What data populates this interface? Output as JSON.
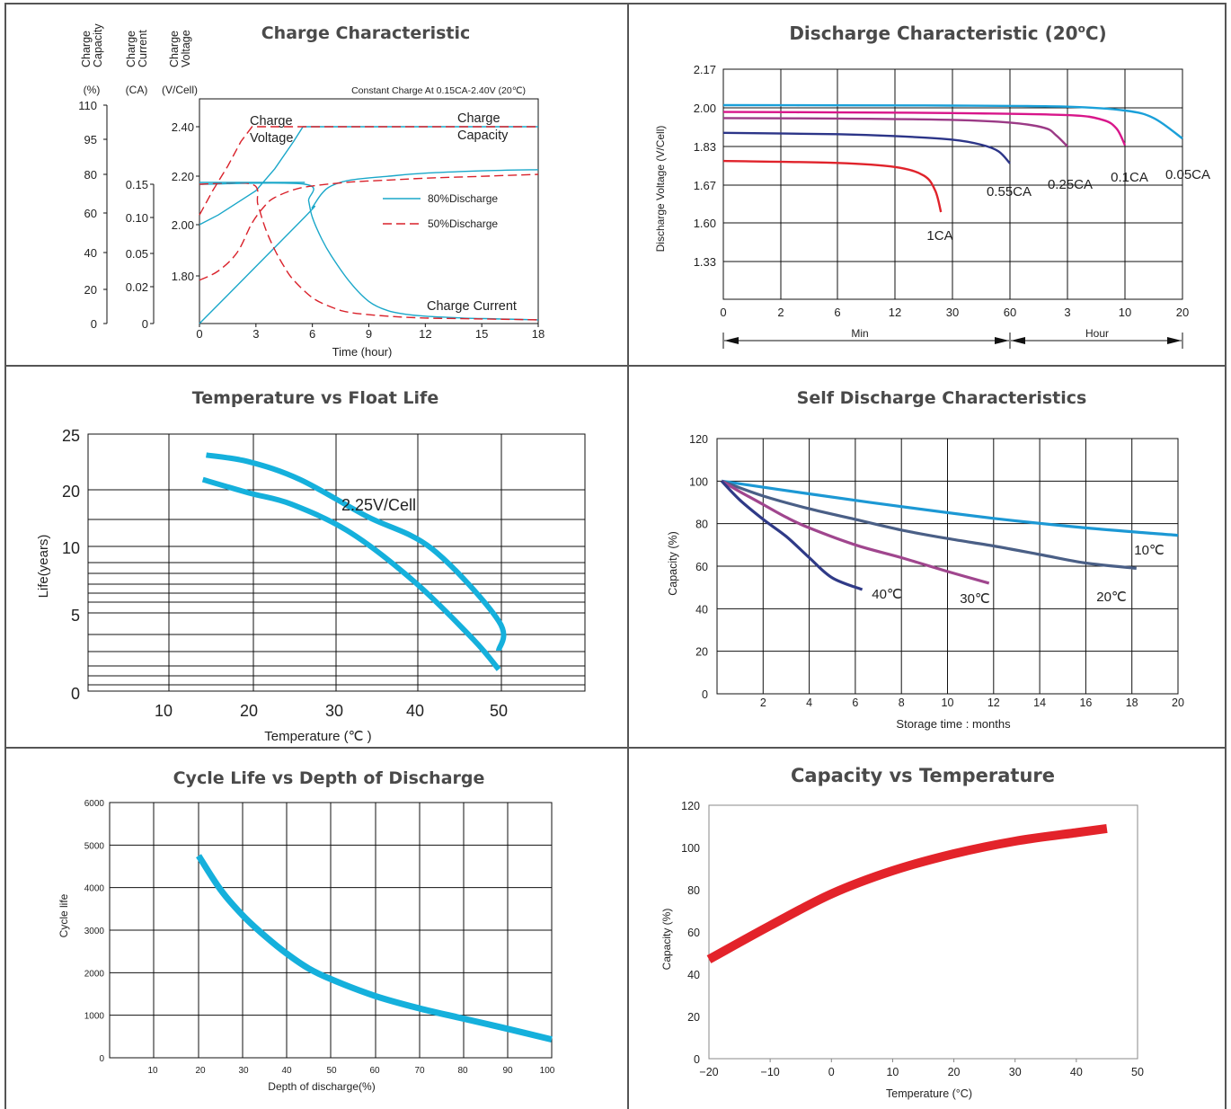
{
  "chart_data": [
    {
      "id": "charge",
      "type": "line",
      "title": "Charge Characteristic",
      "xlabel": "Time (hour)",
      "x_ticks": [
        "0",
        "3",
        "6",
        "9",
        "12",
        "15",
        "18"
      ],
      "xlim": [
        0,
        18
      ],
      "axes": [
        {
          "name": "Charge Capacity",
          "unit": "(%)",
          "ticks": [
            "110",
            "95",
            "80",
            "60",
            "40",
            "20",
            "0"
          ]
        },
        {
          "name": "Charge Current",
          "unit": "(CA)",
          "ticks": [
            "0.15",
            "0.10",
            "0.05",
            "0.02",
            "0"
          ]
        },
        {
          "name": "Charge Voltage",
          "unit": "(V/Cell)",
          "ticks": [
            "2.40",
            "2.20",
            "2.00",
            "1.80"
          ]
        }
      ],
      "note": "Constant Charge At 0.15CA-2.40V  (20℃)",
      "annotations": [
        "Charge Voltage",
        "Charge Capacity",
        "Charge Current"
      ],
      "legend": [
        {
          "name": "80%Discharge",
          "color": "#1aa7c9",
          "style": "solid"
        },
        {
          "name": "50%Discharge",
          "color": "#d9212a",
          "style": "dashed"
        }
      ],
      "legend_position": "middle-right",
      "grid": false,
      "series": [
        {
          "name": "80%Discharge",
          "kind": "voltage",
          "axis": "voltage",
          "x": [
            0,
            1,
            2,
            3,
            4,
            5,
            5.5,
            18
          ],
          "y": [
            2.0,
            2.04,
            2.09,
            2.14,
            2.23,
            2.34,
            2.4,
            2.4
          ]
        },
        {
          "name": "80%Discharge",
          "kind": "current",
          "axis": "current",
          "x": [
            0,
            5.6,
            5.8,
            6,
            6.5,
            7,
            8,
            9,
            10,
            11,
            12,
            14,
            16,
            18
          ],
          "y": [
            0.15,
            0.15,
            0.125,
            0.1,
            0.07,
            0.048,
            0.024,
            0.012,
            0.007,
            0.005,
            0.004,
            0.003,
            0.0025,
            0.002
          ]
        },
        {
          "name": "80%Discharge",
          "kind": "capacity",
          "axis": "capacity",
          "x": [
            0,
            5.6,
            6,
            6.5,
            7,
            8,
            10,
            12,
            15,
            18
          ],
          "y": [
            0,
            58,
            63,
            70,
            74,
            77,
            79,
            80.5,
            81.5,
            82
          ]
        },
        {
          "name": "50%Discharge",
          "kind": "voltage",
          "axis": "voltage",
          "x": [
            0,
            0.7,
            1.5,
            2.2,
            2.8,
            18
          ],
          "y": [
            2.04,
            2.14,
            2.24,
            2.34,
            2.4,
            2.4
          ]
        },
        {
          "name": "50%Discharge",
          "kind": "current",
          "axis": "current",
          "x": [
            0,
            2.8,
            3.1,
            3.5,
            4,
            4.5,
            5,
            6,
            7,
            8,
            10,
            12,
            15,
            18
          ],
          "y": [
            0.15,
            0.15,
            0.12,
            0.085,
            0.055,
            0.038,
            0.026,
            0.014,
            0.009,
            0.006,
            0.004,
            0.003,
            0.0025,
            0.002
          ]
        },
        {
          "name": "50%Discharge",
          "kind": "capacity",
          "axis": "capacity",
          "x": [
            0,
            1,
            2,
            2.8,
            3.5,
            4,
            5,
            6,
            8,
            10,
            12,
            15,
            18
          ],
          "y": [
            25,
            30,
            40,
            55,
            64,
            68,
            72,
            74,
            76,
            77,
            78,
            79,
            80
          ]
        }
      ]
    },
    {
      "id": "discharge",
      "type": "line",
      "title": "Discharge Characteristic (20°C)",
      "title_main": "Discharge Characteristic (20",
      "title_degree": "o",
      "title_end": "C)",
      "ylabel": "Discharge Voltage (V/Cell)",
      "y_ticks": [
        "2.17",
        "2.00",
        "1.83",
        "1.67",
        "1.60",
        "1.33"
      ],
      "x_ticks": [
        "0",
        "2",
        "6",
        "12",
        "30",
        "60",
        "3",
        "10",
        "20"
      ],
      "x_groups": [
        "Min",
        "Hour"
      ],
      "grid": true,
      "series": [
        {
          "name": "1CA",
          "color": "#e0232b",
          "x": [
            0,
            2,
            3,
            3.5,
            3.7,
            3.8
          ],
          "y": [
            1.77,
            1.762,
            1.745,
            1.71,
            1.66,
            1.62
          ]
        },
        {
          "name": "0.55CA",
          "color": "#2c3588",
          "x": [
            0,
            2,
            3,
            4,
            4.5,
            4.8,
            5
          ],
          "y": [
            1.89,
            1.884,
            1.876,
            1.86,
            1.838,
            1.81,
            1.76
          ]
        },
        {
          "name": "0.25CA",
          "color": "#9b3a86",
          "x": [
            0,
            2,
            4,
            5,
            5.6,
            5.8,
            6
          ],
          "y": [
            1.955,
            1.953,
            1.947,
            1.935,
            1.912,
            1.88,
            1.83
          ]
        },
        {
          "name": "0.1CA",
          "color": "#d8168a",
          "x": [
            0,
            2,
            4,
            6,
            6.6,
            6.85,
            7
          ],
          "y": [
            1.982,
            1.98,
            1.977,
            1.968,
            1.948,
            1.91,
            1.835
          ]
        },
        {
          "name": "0.05CA",
          "color": "#1aa0d9",
          "x": [
            0,
            2,
            4,
            6,
            7,
            7.5,
            8
          ],
          "y": [
            2.012,
            2.011,
            2.01,
            2.005,
            1.988,
            1.955,
            1.865
          ]
        }
      ]
    },
    {
      "id": "float",
      "type": "line",
      "title": "Temperature vs Float Life",
      "xlabel": "Temperature (℃ )",
      "ylabel": "Life(years)",
      "x_ticks": [
        "10",
        "20",
        "30",
        "40",
        "50"
      ],
      "y_ticks": [
        "25",
        "20",
        "10",
        "5",
        "0"
      ],
      "annotation": "2.25V/Cell",
      "grid": true,
      "series": [
        {
          "name": "upper",
          "color": "#15b0dc",
          "x": [
            15,
            20,
            26,
            34,
            42,
            50,
            53.5
          ],
          "y": [
            23.2,
            22.6,
            21.0,
            15.5,
            9.9,
            4.6,
            2.7
          ]
        },
        {
          "name": "lower",
          "color": "#15b0dc",
          "x": [
            14.6,
            20,
            25,
            32,
            40,
            47,
            51
          ],
          "y": [
            21.0,
            19.6,
            17.6,
            12.6,
            7.4,
            3.4,
            1.5
          ]
        }
      ]
    },
    {
      "id": "self",
      "type": "line",
      "title": "Self Discharge Characteristics",
      "xlabel": "Storage time : months",
      "ylabel": "Capacity (%)",
      "x_ticks": [
        "2",
        "4",
        "6",
        "8",
        "10",
        "12",
        "14",
        "16",
        "18",
        "20"
      ],
      "y_ticks": [
        "120",
        "100",
        "80",
        "60",
        "40",
        "20",
        "0"
      ],
      "xlim": [
        0,
        20
      ],
      "ylim": [
        0,
        120
      ],
      "grid": true,
      "series": [
        {
          "name": "10℃",
          "color": "#1c98d4",
          "x": [
            0.2,
            4,
            8,
            12,
            16,
            20
          ],
          "y": [
            100,
            94,
            88,
            82.5,
            78,
            74.5
          ]
        },
        {
          "name": "20℃",
          "color": "#4a5f86",
          "x": [
            0.2,
            2,
            4,
            6,
            8,
            10,
            12,
            14,
            16,
            18.2
          ],
          "y": [
            100,
            93,
            87,
            82,
            77,
            73,
            69.5,
            65.5,
            61.5,
            59
          ]
        },
        {
          "name": "30℃",
          "color": "#a0468e",
          "x": [
            0.2,
            1,
            2,
            3,
            4,
            6,
            8,
            10,
            11.8
          ],
          "y": [
            100,
            95,
            89,
            83,
            78,
            70,
            64,
            57.5,
            52
          ]
        },
        {
          "name": "40℃",
          "color": "#2f3a87",
          "x": [
            0.2,
            1,
            2,
            3,
            4,
            5,
            6.3
          ],
          "y": [
            100,
            91,
            82,
            74,
            64,
            54.5,
            49
          ]
        }
      ]
    },
    {
      "id": "cycle",
      "type": "line",
      "title": "Cycle Life vs Depth of Discharge",
      "xlabel": "Depth of discharge(%)",
      "ylabel": "Cycle life",
      "x_ticks": [
        "10",
        "20",
        "30",
        "40",
        "50",
        "60",
        "70",
        "80",
        "90",
        "100"
      ],
      "y_ticks": [
        "6000",
        "5000",
        "4000",
        "3000",
        "2000",
        "1000",
        "0"
      ],
      "xlim": [
        0,
        100
      ],
      "ylim": [
        0,
        6000
      ],
      "grid": true,
      "series": [
        {
          "name": "cycle",
          "color": "#15b0dc",
          "x": [
            20,
            25,
            30,
            35,
            40,
            45,
            50,
            60,
            70,
            80,
            90,
            100
          ],
          "y": [
            4750,
            3950,
            3350,
            2870,
            2450,
            2100,
            1850,
            1450,
            1160,
            920,
            680,
            430
          ]
        }
      ]
    },
    {
      "id": "captemp",
      "type": "line",
      "title": "Capacity vs Temperature",
      "xlabel": "Temperature (°C)",
      "ylabel": "Capacity (%)",
      "x_ticks": [
        "−20",
        "−10",
        "0",
        "10",
        "20",
        "30",
        "40",
        "50"
      ],
      "y_ticks": [
        "120",
        "100",
        "80",
        "60",
        "40",
        "20",
        "0"
      ],
      "xlim": [
        -20,
        50
      ],
      "ylim": [
        0,
        120
      ],
      "grid": false,
      "series": [
        {
          "name": "capacity",
          "color": "#e3232a",
          "x": [
            -20,
            -10,
            0,
            10,
            20,
            30,
            40,
            45
          ],
          "y": [
            47,
            63,
            78,
            89,
            97,
            103,
            107,
            109
          ]
        }
      ]
    }
  ]
}
